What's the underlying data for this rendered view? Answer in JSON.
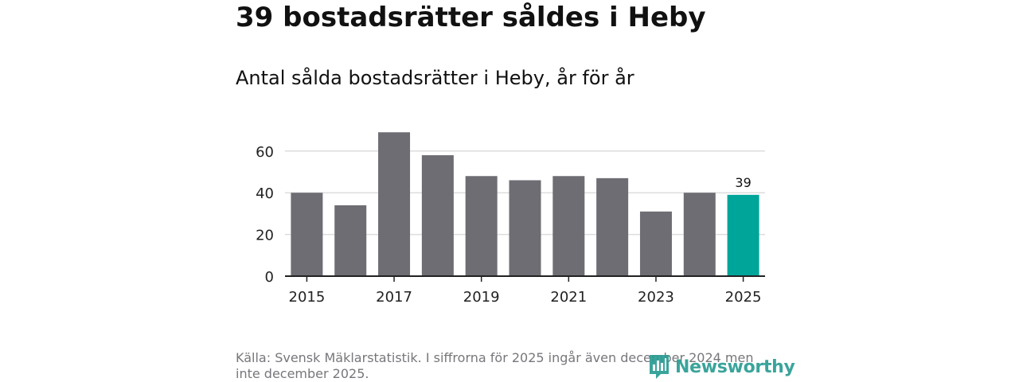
{
  "header": {
    "title": "39 bostadsrätter såldes i Heby",
    "subtitle": "Antal sålda bostadsrätter i Heby, år för år"
  },
  "chart_data": {
    "type": "bar",
    "categories": [
      "2015",
      "2016",
      "2017",
      "2018",
      "2019",
      "2020",
      "2021",
      "2022",
      "2023",
      "2024",
      "2025"
    ],
    "values": [
      40,
      34,
      69,
      58,
      48,
      46,
      48,
      47,
      31,
      40,
      39
    ],
    "x_tick_labels": [
      "2015",
      "2017",
      "2019",
      "2021",
      "2023",
      "2025"
    ],
    "y_ticks": [
      0,
      20,
      40,
      60
    ],
    "ylim": [
      0,
      72
    ],
    "highlight_category": "2025",
    "highlight_label": "39",
    "colors": {
      "bar": "#6e6d73",
      "highlight": "#00a59a",
      "grid": "#dddddd",
      "axis": "#222222"
    },
    "grid": true
  },
  "footer": {
    "source": "Källa: Svensk Mäklarstatistik. I siffrorna för 2025 ingår även december 2024 men inte december 2025.",
    "brand": "Newsworthy",
    "brand_icon": "newsworthy-logo-icon",
    "brand_color": "#2a9d93"
  }
}
